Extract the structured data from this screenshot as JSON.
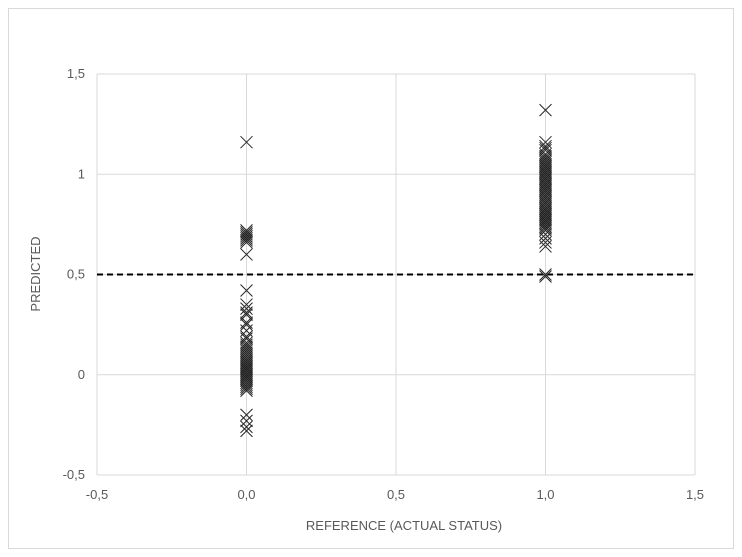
{
  "chart_data": {
    "type": "scatter",
    "title": "",
    "xlabel": "REFERENCE (ACTUAL STATUS)",
    "ylabel": "PREDICTED",
    "xlim": [
      -0.5,
      1.5
    ],
    "ylim": [
      -0.5,
      1.5
    ],
    "x_ticks": [
      "-0,5",
      "0,0",
      "0,5",
      "1,0",
      "1,5"
    ],
    "y_ticks": [
      "-0,5",
      "0",
      "0,5",
      "1",
      "1,5"
    ],
    "grid": true,
    "legend": "none",
    "threshold": 0.5,
    "marker": "x",
    "colors": {
      "marker": "#262626",
      "grid": "#d9d9d9",
      "text": "#595959",
      "threshold": "#000000"
    },
    "series": [
      {
        "x": [
          0,
          0,
          0,
          0,
          0,
          0,
          0,
          0,
          0,
          0,
          0,
          0,
          0,
          0,
          0,
          0,
          0,
          0,
          0,
          0,
          0,
          0,
          0,
          0,
          0,
          0,
          0,
          0,
          0,
          0,
          0,
          0,
          0,
          0,
          0,
          0,
          0,
          0,
          0,
          0,
          0,
          0,
          0,
          0,
          0,
          0,
          0,
          0,
          0,
          0,
          0,
          0,
          0,
          0,
          0
        ],
        "y": [
          1.16,
          0.72,
          0.7,
          0.68,
          0.66,
          0.6,
          0.42,
          0.35,
          0.33,
          0.3,
          0.26,
          0.22,
          0.19,
          0.16,
          0.14,
          0.12,
          0.1,
          0.08,
          0.06,
          0.05,
          0.04,
          0.03,
          0.02,
          0.01,
          0.0,
          -0.01,
          -0.02,
          -0.03,
          -0.04,
          -0.05,
          -0.06,
          -0.07,
          -0.08,
          -0.2,
          -0.23,
          -0.26,
          -0.28,
          0.11,
          0.07,
          0.02,
          -0.01,
          0.15,
          0.09,
          0.18,
          0.25,
          0.31,
          0.69,
          0.71,
          0.67,
          0.03,
          -0.02,
          0.0,
          0.13,
          0.04,
          0.06
        ]
      },
      {
        "x": [
          1,
          1,
          1,
          1,
          1,
          1,
          1,
          1,
          1,
          1,
          1,
          1,
          1,
          1,
          1,
          1,
          1,
          1,
          1,
          1,
          1,
          1,
          1,
          1,
          1,
          1,
          1,
          1,
          1,
          1,
          1,
          1,
          1,
          1,
          1,
          1,
          1,
          1,
          1,
          1,
          1,
          1,
          1,
          1,
          1,
          1,
          1,
          1,
          1,
          1,
          1,
          1,
          1,
          1,
          1,
          1,
          1,
          1,
          1,
          1
        ],
        "y": [
          1.32,
          1.16,
          1.14,
          1.12,
          1.1,
          1.08,
          1.06,
          1.05,
          1.04,
          1.03,
          1.02,
          1.01,
          1.0,
          0.99,
          0.98,
          0.97,
          0.96,
          0.95,
          0.94,
          0.93,
          0.92,
          0.91,
          0.9,
          0.89,
          0.88,
          0.87,
          0.86,
          0.85,
          0.84,
          0.83,
          0.82,
          0.81,
          0.8,
          0.79,
          0.78,
          0.77,
          0.76,
          0.75,
          0.74,
          0.73,
          0.72,
          0.7,
          0.68,
          0.66,
          0.64,
          0.5,
          0.49,
          1.07,
          1.04,
          1.01,
          0.98,
          0.95,
          0.92,
          0.89,
          0.86,
          0.83,
          0.8,
          0.77,
          1.13,
          1.09
        ]
      }
    ]
  }
}
